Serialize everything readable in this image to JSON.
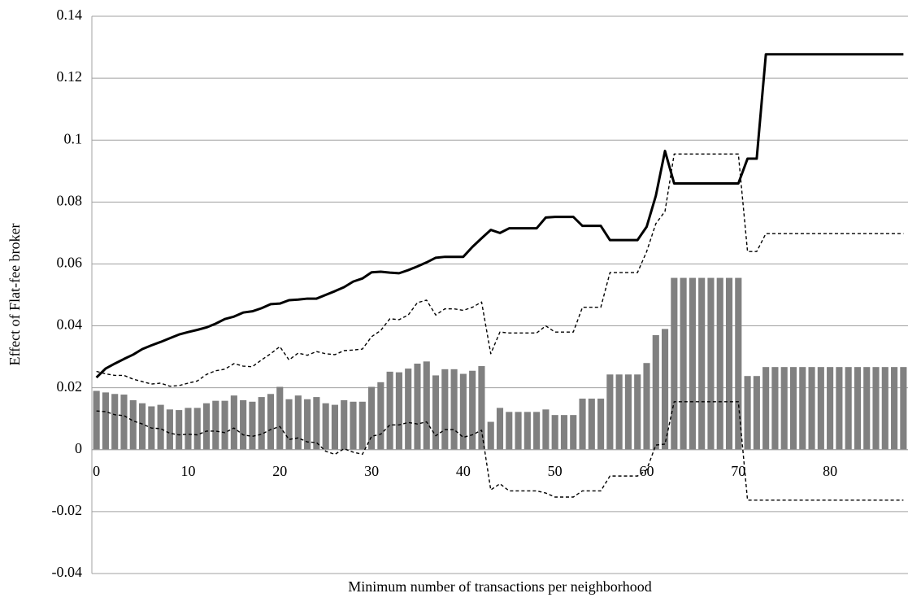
{
  "chart_data": {
    "type": "combo",
    "y_label": "Effect of Flat-fee broker",
    "x_label": "Minimum number of transactions per neighborhood",
    "categories": [
      0,
      null,
      null,
      null,
      null,
      null,
      null,
      null,
      null,
      null,
      10,
      null,
      null,
      null,
      null,
      null,
      null,
      null,
      null,
      null,
      20,
      null,
      null,
      null,
      null,
      null,
      null,
      null,
      null,
      null,
      30,
      null,
      null,
      null,
      null,
      null,
      null,
      null,
      null,
      null,
      40,
      null,
      null,
      null,
      null,
      null,
      null,
      null,
      null,
      null,
      50,
      null,
      null,
      null,
      null,
      null,
      null,
      null,
      null,
      null,
      60,
      null,
      null,
      null,
      null,
      null,
      null,
      null,
      null,
      null,
      70,
      null,
      null,
      null,
      null,
      null,
      null,
      null,
      null,
      null,
      80,
      null,
      null,
      null,
      null,
      null,
      null,
      null,
      null
    ],
    "ylim": [
      -0.04,
      0.14
    ],
    "yticks": [
      -0.04,
      -0.02,
      0,
      0.02,
      0.04,
      0.06,
      0.08,
      0.1,
      0.12,
      0.14
    ],
    "grid": true,
    "series": [
      {
        "type": "bar",
        "color": "#808080",
        "values": [
          0.019,
          0.0185,
          0.018,
          0.0178,
          0.016,
          0.015,
          0.014,
          0.0145,
          0.013,
          0.0128,
          0.0135,
          0.0135,
          0.015,
          0.0158,
          0.0158,
          0.0175,
          0.016,
          0.0155,
          0.017,
          0.018,
          0.0203,
          0.0163,
          0.0175,
          0.0163,
          0.017,
          0.015,
          0.0145,
          0.016,
          0.0155,
          0.0155,
          0.0203,
          0.0218,
          0.0252,
          0.025,
          0.0262,
          0.0278,
          0.0285,
          0.024,
          0.026,
          0.026,
          0.0245,
          0.0255,
          0.027,
          0.009,
          0.0135,
          0.0122,
          0.0122,
          0.0122,
          0.0122,
          0.013,
          0.0112,
          0.0112,
          0.0112,
          0.0165,
          0.0165,
          0.0165,
          0.0243,
          0.0243,
          0.0243,
          0.0243,
          0.028,
          0.037,
          0.039,
          0.0555,
          0.0555,
          0.0555,
          0.0555,
          0.0555,
          0.0555,
          0.0555,
          0.0555,
          0.0238,
          0.0238,
          0.0267,
          0.0267,
          0.0267,
          0.0267,
          0.0267,
          0.0267,
          0.0267,
          0.0267,
          0.0267,
          0.0267,
          0.0267,
          0.0267,
          0.0267,
          0.0267,
          0.0267,
          0.0267
        ]
      },
      {
        "type": "line",
        "color": "#000000",
        "dashed": false,
        "values": [
          0.0233,
          0.0262,
          0.0278,
          0.0293,
          0.0307,
          0.0325,
          0.0337,
          0.0348,
          0.036,
          0.0372,
          0.038,
          0.0387,
          0.0395,
          0.0407,
          0.0422,
          0.043,
          0.0443,
          0.0447,
          0.0457,
          0.047,
          0.0472,
          0.0483,
          0.0485,
          0.0488,
          0.0488,
          0.05,
          0.0512,
          0.0525,
          0.0543,
          0.0553,
          0.0573,
          0.0575,
          0.0572,
          0.057,
          0.058,
          0.0592,
          0.0605,
          0.062,
          0.0623,
          0.0623,
          0.0623,
          0.0655,
          0.0683,
          0.071,
          0.07,
          0.0715,
          0.0715,
          0.0715,
          0.0715,
          0.075,
          0.0752,
          0.0752,
          0.0752,
          0.0723,
          0.0723,
          0.0723,
          0.0677,
          0.0677,
          0.0677,
          0.0677,
          0.072,
          0.082,
          0.0965,
          0.086,
          0.086,
          0.086,
          0.086,
          0.086,
          0.086,
          0.086,
          0.086,
          0.094,
          0.094,
          0.1277,
          0.1277,
          0.1277,
          0.1277,
          0.1277,
          0.1277,
          0.1277,
          0.1277,
          0.1277,
          0.1277,
          0.1277,
          0.1277,
          0.1277,
          0.1277,
          0.1277,
          0.1277
        ]
      },
      {
        "type": "line",
        "color": "#000000",
        "dashed": true,
        "values": [
          0.0253,
          0.0245,
          0.024,
          0.024,
          0.0228,
          0.022,
          0.0212,
          0.0215,
          0.0205,
          0.0207,
          0.0215,
          0.0222,
          0.0243,
          0.0255,
          0.026,
          0.0278,
          0.027,
          0.0268,
          0.029,
          0.031,
          0.0333,
          0.029,
          0.0312,
          0.0305,
          0.0317,
          0.031,
          0.0307,
          0.032,
          0.0322,
          0.0325,
          0.0365,
          0.0385,
          0.0423,
          0.042,
          0.0435,
          0.0475,
          0.0483,
          0.0435,
          0.0455,
          0.0455,
          0.045,
          0.046,
          0.0477,
          0.031,
          0.038,
          0.0377,
          0.0377,
          0.0377,
          0.0377,
          0.04,
          0.038,
          0.038,
          0.038,
          0.046,
          0.046,
          0.046,
          0.0572,
          0.0572,
          0.0572,
          0.0572,
          0.064,
          0.073,
          0.077,
          0.0955,
          0.0955,
          0.0955,
          0.0955,
          0.0955,
          0.0955,
          0.0955,
          0.0955,
          0.064,
          0.064,
          0.0698,
          0.0698,
          0.0698,
          0.0698,
          0.0698,
          0.0698,
          0.0698,
          0.0698,
          0.0698,
          0.0698,
          0.0698,
          0.0698,
          0.0698,
          0.0698,
          0.0698,
          0.0698
        ]
      },
      {
        "type": "line",
        "color": "#000000",
        "dashed": true,
        "values": [
          0.0125,
          0.0123,
          0.0113,
          0.011,
          0.0093,
          0.0083,
          0.007,
          0.0068,
          0.0053,
          0.0048,
          0.005,
          0.0048,
          0.006,
          0.006,
          0.0055,
          0.007,
          0.0048,
          0.0043,
          0.005,
          0.0065,
          0.0075,
          0.0033,
          0.0038,
          0.0025,
          0.0023,
          -0.0005,
          -0.0015,
          0.0003,
          -0.0008,
          -0.0015,
          0.0043,
          0.005,
          0.008,
          0.008,
          0.0088,
          0.0083,
          0.009,
          0.0045,
          0.0065,
          0.0065,
          0.004,
          0.0048,
          0.0063,
          -0.013,
          -0.011,
          -0.0133,
          -0.0133,
          -0.0133,
          -0.0133,
          -0.014,
          -0.0153,
          -0.0153,
          -0.0153,
          -0.0133,
          -0.0133,
          -0.0133,
          -0.0085,
          -0.0085,
          -0.0085,
          -0.0085,
          -0.0065,
          0.0015,
          0.0018,
          0.0155,
          0.0155,
          0.0155,
          0.0155,
          0.0155,
          0.0155,
          0.0155,
          0.0155,
          -0.0163,
          -0.0163,
          -0.0163,
          -0.0163,
          -0.0163,
          -0.0163,
          -0.0163,
          -0.0163,
          -0.0163,
          -0.0163,
          -0.0163,
          -0.0163,
          -0.0163,
          -0.0163,
          -0.0163,
          -0.0163,
          -0.0163,
          -0.0163
        ]
      }
    ]
  }
}
